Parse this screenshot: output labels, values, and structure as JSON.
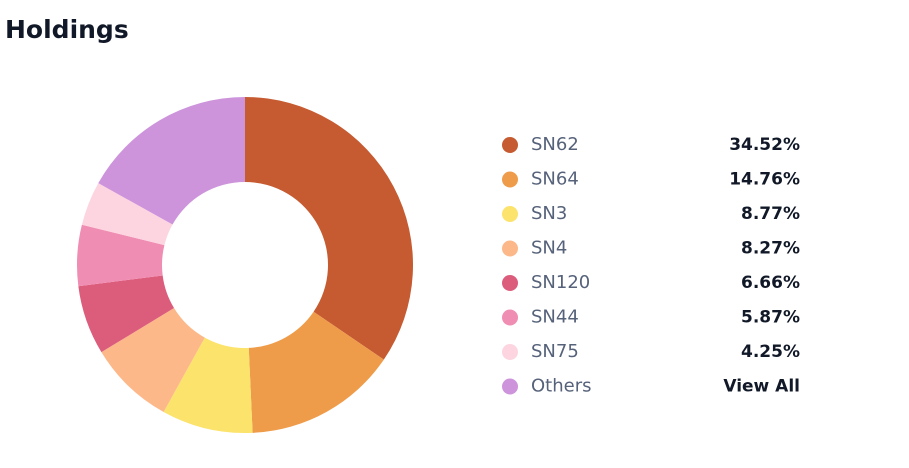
{
  "chart_data": {
    "type": "donut",
    "title": "Holdings",
    "categories": [
      "SN62",
      "SN64",
      "SN3",
      "SN4",
      "SN120",
      "SN44",
      "SN75",
      "Others"
    ],
    "values": [
      34.52,
      14.76,
      8.77,
      8.27,
      6.66,
      5.87,
      4.25,
      16.9
    ],
    "value_labels": [
      "34.52%",
      "14.76%",
      "8.77%",
      "8.27%",
      "6.66%",
      "5.87%",
      "4.25%",
      null
    ],
    "colors": [
      "#c65a30",
      "#ef9c4a",
      "#fbe36c",
      "#fdb88a",
      "#dc5c7c",
      "#f08db3",
      "#fdd5e0",
      "#cd94dc"
    ],
    "view_all": "View All"
  }
}
